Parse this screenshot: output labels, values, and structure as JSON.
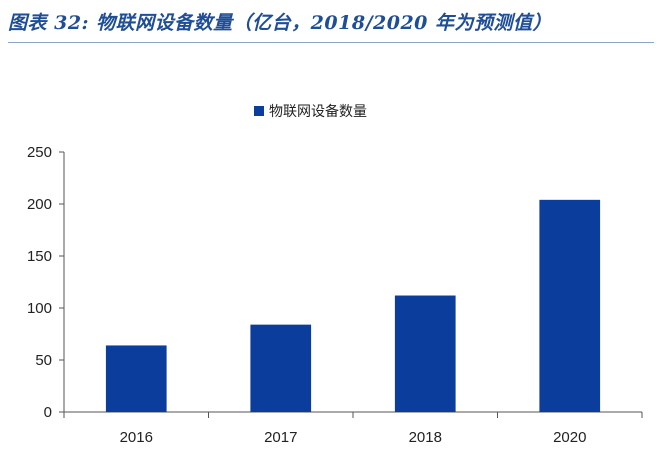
{
  "title": "图表 32:  物联网设备数量（亿台，2018/2020 年为预测值）",
  "colors": {
    "bar": "#0b3d9c",
    "title": "#1f4e96",
    "axis": "#555555"
  },
  "chart_data": {
    "type": "bar",
    "title": "图表 32:  物联网设备数量（亿台，2018/2020 年为预测值）",
    "categories": [
      "2016",
      "2017",
      "2018",
      "2020"
    ],
    "series": [
      {
        "name": "物联网设备数量",
        "values": [
          64,
          84,
          112,
          204
        ]
      }
    ],
    "xlabel": "",
    "ylabel": "",
    "ylim": [
      0,
      250
    ],
    "yticks": [
      "0",
      "50",
      "100",
      "150",
      "200",
      "250"
    ],
    "grid": false,
    "legend": "top-center"
  }
}
